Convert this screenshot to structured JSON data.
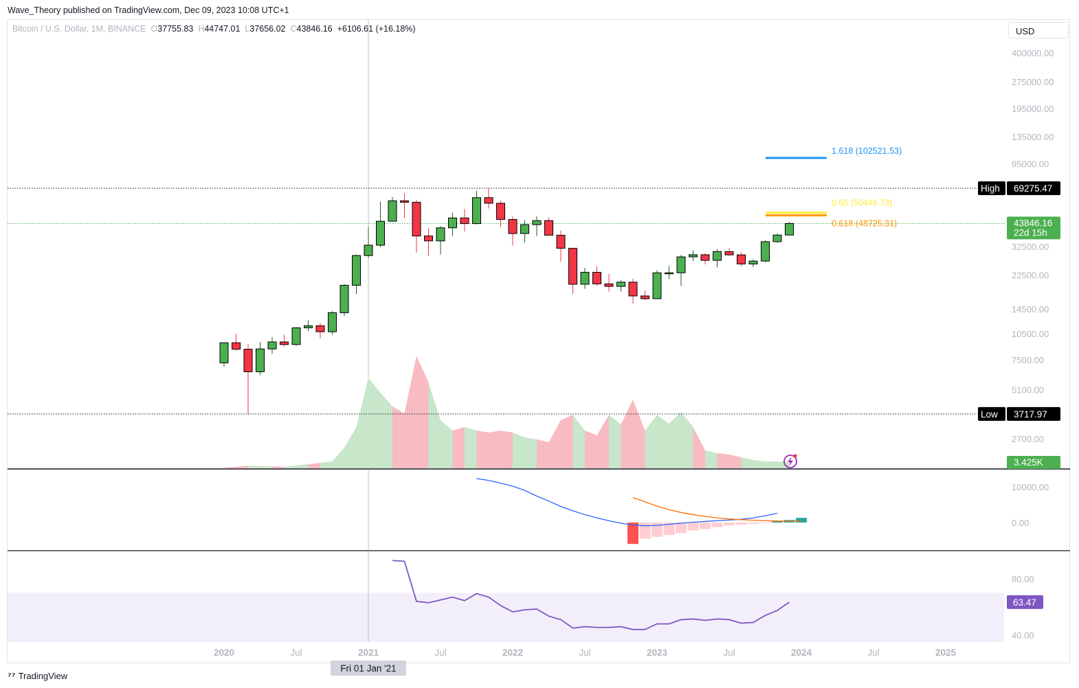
{
  "published": "Wave_Theory published on TradingView.com, Dec 09, 2023 10:08 UTC+1",
  "legend": {
    "symbol": "Bitcoin / U.S. Dollar, 1M, BINANCE",
    "o_label": "O",
    "o": "37755.83",
    "h_label": "H",
    "h": "44747.01",
    "l_label": "L",
    "l": "37656.02",
    "c_label": "C",
    "c": "43846.16",
    "change": "+6106.61 (+16.18%)"
  },
  "currency": "USD",
  "brand": "TradingView",
  "crosshair_date": "Fri 01 Jan '21",
  "colors": {
    "up": "#4caf50",
    "down": "#f23645",
    "vol_up": "#c8e6c9",
    "vol_down": "#f8bbc2",
    "fib1618": "#2196f3",
    "fib0618": "#ff9800",
    "fib065": "#ffeb3b",
    "macd": "#2962ff",
    "signal": "#ff6d00",
    "rsi": "#7e57c2"
  },
  "chart_data": [
    {
      "type": "candlestick",
      "title": "Bitcoin / U.S. Dollar, 1M, BINANCE",
      "scale": "log",
      "start_month": "2020-01",
      "ohlc": [
        [
          7200,
          9350,
          6850,
          9350
        ],
        [
          9350,
          10500,
          8450,
          8600
        ],
        [
          8600,
          9200,
          3718,
          6420
        ],
        [
          6420,
          9460,
          6150,
          8630
        ],
        [
          8630,
          10070,
          8100,
          9450
        ],
        [
          9450,
          10380,
          8900,
          9140
        ],
        [
          9140,
          11450,
          8980,
          11350
        ],
        [
          11350,
          12490,
          10900,
          11650
        ],
        [
          11650,
          12080,
          9880,
          10780
        ],
        [
          10780,
          14100,
          10400,
          13800
        ],
        [
          13800,
          19900,
          13200,
          19700
        ],
        [
          19700,
          29300,
          17600,
          28950
        ],
        [
          28950,
          41950,
          28100,
          33100
        ],
        [
          33100,
          58350,
          32300,
          45150
        ],
        [
          45150,
          61800,
          44950,
          58800
        ],
        [
          58800,
          64850,
          47000,
          57700
        ],
        [
          57700,
          59500,
          30000,
          37300
        ],
        [
          37300,
          41300,
          28800,
          35000
        ],
        [
          35000,
          42400,
          29300,
          41450
        ],
        [
          41450,
          50500,
          37300,
          47100
        ],
        [
          47100,
          52900,
          39600,
          43800
        ],
        [
          43800,
          67000,
          43300,
          61300
        ],
        [
          61300,
          69275,
          53250,
          57000
        ],
        [
          57000,
          59050,
          42000,
          46200
        ],
        [
          46200,
          47990,
          32900,
          38500
        ],
        [
          38500,
          45800,
          34300,
          43200
        ],
        [
          43200,
          48200,
          37200,
          45500
        ],
        [
          45500,
          47450,
          37700,
          37650
        ],
        [
          37650,
          40000,
          26700,
          31800
        ],
        [
          31800,
          31900,
          17600,
          19950
        ],
        [
          19950,
          24650,
          18800,
          23300
        ],
        [
          23300,
          25200,
          19550,
          20050
        ],
        [
          20050,
          22800,
          18150,
          19400
        ],
        [
          19400,
          20990,
          18150,
          20500
        ],
        [
          20500,
          21450,
          15500,
          17150
        ],
        [
          17150,
          18400,
          16250,
          16540
        ],
        [
          16540,
          23950,
          16500,
          23130
        ],
        [
          23130,
          25250,
          21350,
          23150
        ],
        [
          23150,
          29200,
          19550,
          28450
        ],
        [
          28450,
          31000,
          26950,
          29250
        ],
        [
          29250,
          29850,
          25800,
          27200
        ],
        [
          27200,
          31400,
          24800,
          30450
        ],
        [
          30450,
          31800,
          28850,
          29200
        ],
        [
          29200,
          30150,
          25150,
          25950
        ],
        [
          25950,
          27500,
          24900,
          26950
        ],
        [
          26950,
          35200,
          26550,
          34650
        ],
        [
          34650,
          38400,
          34100,
          37750
        ],
        [
          37755.83,
          44747.01,
          37656.02,
          43846.16
        ]
      ],
      "price_ticks": [
        "400000.00",
        "275000.00",
        "195000.00",
        "135000.00",
        "95000.00",
        "32500.00",
        "22500.00",
        "14500.00",
        "10500.00",
        "7500.00",
        "5100.00",
        "2700.00"
      ],
      "high": {
        "label": "High",
        "value": "69275.47"
      },
      "low": {
        "label": "Low",
        "value": "3717.97"
      },
      "last_price": {
        "value": "43846.16",
        "countdown": "22d 15h"
      },
      "fib_levels": [
        {
          "label": "1.618 (102521.53)",
          "price": 102521.53,
          "color_key": "fib1618"
        },
        {
          "label": "0.65 (50446.73)",
          "price": 50446.73,
          "color_key": "fib065"
        },
        {
          "label": "0.618 (48725.31)",
          "price": 48725.31,
          "color_key": "fib0618"
        }
      ],
      "time_ticks": [
        {
          "label": "2020",
          "month": 0,
          "bold": true
        },
        {
          "label": "Jul",
          "month": 6
        },
        {
          "label": "2021",
          "month": 12,
          "bold": true
        },
        {
          "label": "Jul",
          "month": 18
        },
        {
          "label": "2022",
          "month": 24,
          "bold": true
        },
        {
          "label": "Jul",
          "month": 30
        },
        {
          "label": "2023",
          "month": 36,
          "bold": true
        },
        {
          "label": "Jul",
          "month": 42
        },
        {
          "label": "2024",
          "month": 48,
          "bold": true
        },
        {
          "label": "Jul",
          "month": 54
        },
        {
          "label": "2025",
          "month": 60,
          "bold": true
        }
      ]
    },
    {
      "type": "area",
      "title": "Volume",
      "unit": "K",
      "last_label": "3.425K",
      "values": [
        0.4,
        0.8,
        1.5,
        1.1,
        1.1,
        0.8,
        1.5,
        2.3,
        3,
        3.8,
        11.4,
        22.8,
        50,
        41.8,
        34.2,
        30.4,
        62.3,
        47.5,
        26.6,
        20.9,
        22.8,
        20.9,
        19.8,
        20.9,
        19.8,
        17.1,
        16,
        14.4,
        26.6,
        29.6,
        20.9,
        18.2,
        29.6,
        24.3,
        38,
        20.9,
        29.6,
        24.7,
        31.2,
        22.8,
        9.9,
        8.4,
        7.6,
        6.1,
        4.6,
        3.8,
        3.8,
        3.4
      ]
    },
    {
      "type": "bar+line",
      "title": "MACD",
      "ticks": [
        "10000.00",
        "0.00"
      ],
      "macd": {
        "start_month": 21,
        "values": [
          12300,
          11800,
          11000,
          10200,
          9000,
          7400,
          6000,
          4500,
          3300,
          2200,
          1300,
          500,
          -200,
          -700,
          -900,
          -800,
          -500,
          -200,
          100,
          300,
          500,
          700,
          900,
          1300,
          1900,
          2600
        ]
      },
      "signal": {
        "start_month": 34,
        "values": [
          7000,
          5800,
          4600,
          3600,
          2800,
          2200,
          1700,
          1300,
          1000,
          800,
          650,
          500,
          420,
          380,
          380
        ]
      },
      "histogram": {
        "start_month": 34,
        "values": [
          -6000,
          -4500,
          -4000,
          -3500,
          -3000,
          -2200,
          -1800,
          -1300,
          -800,
          -600,
          -400,
          -200,
          300,
          700,
          1300
        ]
      }
    },
    {
      "type": "line",
      "title": "RSI",
      "ticks": [
        "80.00",
        "40.00"
      ],
      "band": [
        30,
        70
      ],
      "last_label": "63.47",
      "start_month": 14,
      "values": [
        93,
        92.5,
        64,
        63,
        65,
        67,
        64.5,
        69.5,
        67,
        61,
        56.5,
        58,
        58.5,
        53.5,
        51,
        45,
        46,
        45.5,
        45.5,
        46,
        44,
        44,
        48,
        48,
        51,
        51.5,
        50.5,
        51.5,
        51,
        48.5,
        49,
        54,
        57.5,
        63.47
      ]
    }
  ]
}
